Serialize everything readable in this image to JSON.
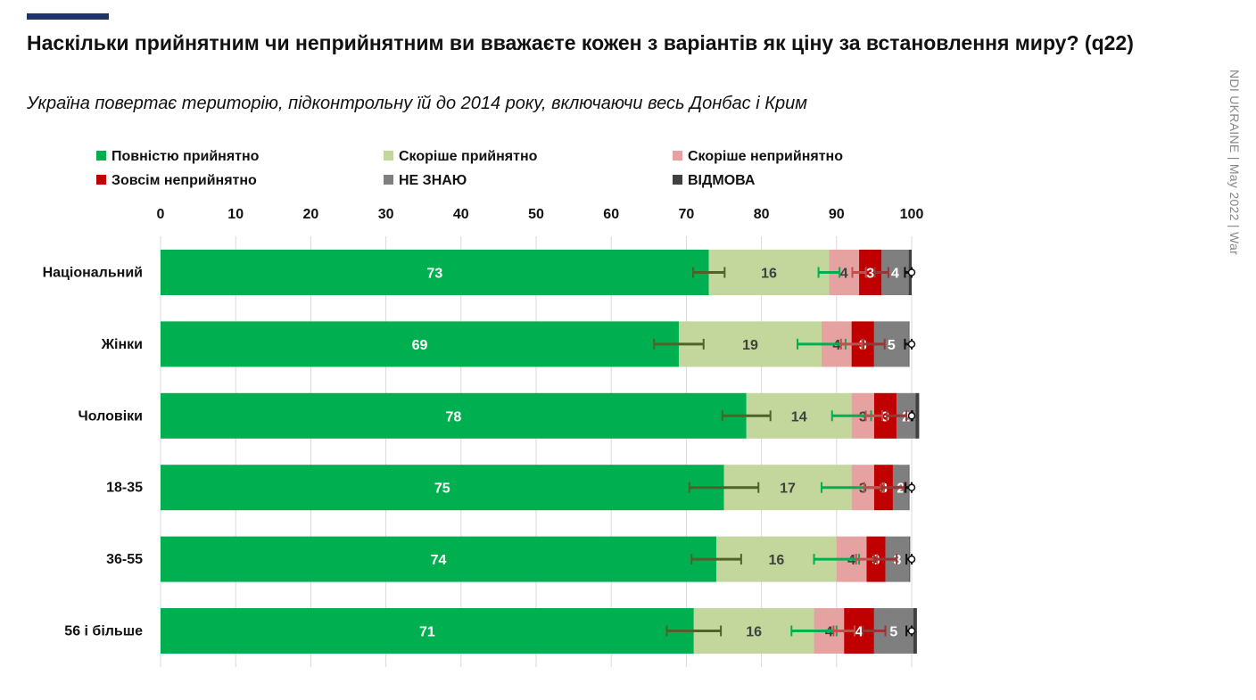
{
  "header": {
    "title": "Наскільки прийнятним чи неприйнятним ви вважаєте кожен з варіантів як ціну за встановлення миру? (q22)",
    "subtitle": "Україна повертає територію, підконтрольну їй до 2014 року, включаючи весь Донбас і Крим",
    "side_credit": "NDI UKRAINE | May 2022 | War"
  },
  "chart_data": {
    "type": "bar",
    "orientation": "horizontal-stacked",
    "title": "",
    "xlabel": "",
    "ylabel": "",
    "xlim": [
      0,
      100
    ],
    "x_ticks": [
      "0",
      "10",
      "20",
      "30",
      "40",
      "50",
      "60",
      "70",
      "80",
      "90",
      "100"
    ],
    "grid": "vertical",
    "legend_position": "top",
    "categories": [
      "Національний",
      "Жінки",
      "Чоловіки",
      "18-35",
      "36-55",
      "56 і більше"
    ],
    "series": [
      {
        "name": "Повністю прийнятно",
        "color": "#00b050",
        "label_color": "#ffffff",
        "values": [
          73,
          69,
          78,
          75,
          74,
          71
        ],
        "labels": [
          "73",
          "69",
          "78",
          "75",
          "74",
          "71"
        ],
        "error": [
          2.1,
          3.3,
          3.2,
          4.6,
          3.3,
          3.6
        ],
        "error_color": "#4f6228"
      },
      {
        "name": "Скоріше прийнятно",
        "color": "#c3d69b",
        "label_color": "#404040",
        "values": [
          16,
          19,
          14,
          17,
          16,
          16
        ],
        "labels": [
          "16",
          "19",
          "14",
          "17",
          "16",
          "16"
        ],
        "error": [
          1.4,
          3.2,
          2.6,
          4.0,
          3.0,
          3.0
        ],
        "error_color": "#00b050"
      },
      {
        "name": "Скоріше неприйнятно",
        "color": "#e6a1a1",
        "label_color": "#404040",
        "values": [
          4,
          4,
          3,
          3,
          4,
          4
        ],
        "labels": [
          "4",
          "4",
          "3",
          "3",
          "4",
          "4"
        ],
        "error": [
          0.9,
          1.4,
          1.1,
          1.3,
          1.4,
          1.4
        ],
        "error_color": "#c0504d"
      },
      {
        "name": "Зовсім неприйнятно",
        "color": "#c00000",
        "label_color": "#ffffff",
        "values": [
          3,
          3,
          3,
          2.5,
          2.5,
          4
        ],
        "labels": [
          "3",
          "3",
          "3",
          "3",
          "3",
          "4"
        ],
        "error": [
          0.9,
          1.4,
          1.3,
          1.5,
          1.5,
          1.5
        ],
        "error_color": "#953735"
      },
      {
        "name": "НЕ ЗНАЮ",
        "color": "#7f7f7f",
        "label_color": "#ffffff",
        "values": [
          3.6,
          4.6,
          2.5,
          2.1,
          3.2,
          5.2
        ],
        "labels": [
          "4",
          "5",
          "2",
          "2",
          "3",
          "5"
        ],
        "error": [
          0.5,
          0.5,
          0.4,
          0.4,
          0.4,
          0.9
        ],
        "error_color": "#111111"
      },
      {
        "name": "ВІДМОВА",
        "color": "#404040",
        "label_color": "#ffffff",
        "values": [
          0.4,
          0.1,
          0.5,
          0.1,
          0.1,
          0.5
        ],
        "labels": [
          "",
          "",
          "",
          "",
          "",
          ""
        ],
        "error": [
          0,
          0,
          0,
          0,
          0,
          0
        ],
        "error_color": "#111111"
      }
    ]
  }
}
